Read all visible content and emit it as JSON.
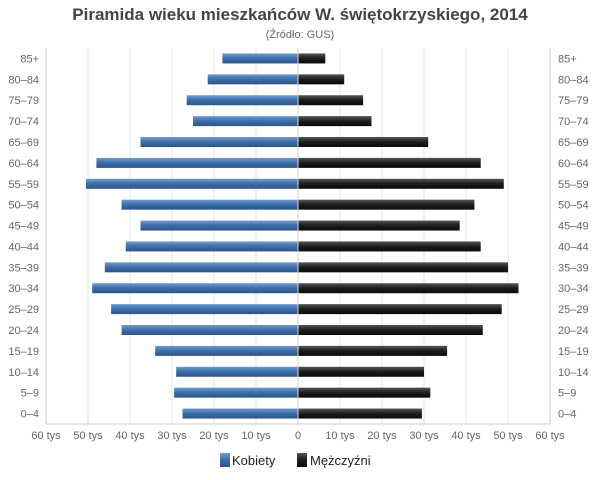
{
  "chart_data": {
    "type": "bar",
    "orientation": "horizontal",
    "layout": "population-pyramid",
    "title": "Piramida wieku mieszkańców W. świętokrzyskiego, 2014",
    "subtitle": "(Źródło: GUS)",
    "categories": [
      "0–4",
      "5–9",
      "10–14",
      "15–19",
      "20–24",
      "25–29",
      "30–34",
      "35–39",
      "40–44",
      "45–49",
      "50–54",
      "55–59",
      "60–64",
      "65–69",
      "70–74",
      "75–79",
      "80–84",
      "85+"
    ],
    "series": [
      {
        "name": "Kobiety",
        "color": "#3d6da8",
        "side": "left",
        "values": [
          27.5,
          29.5,
          29,
          34,
          42,
          44.5,
          49,
          46,
          41,
          37.5,
          42,
          50.5,
          48,
          37.5,
          25,
          26.5,
          21.5,
          18
        ]
      },
      {
        "name": "Mężczyźni",
        "color": "#1c1c1c",
        "side": "right",
        "values": [
          29.5,
          31.5,
          30,
          35.5,
          44,
          48.5,
          52.5,
          50,
          43.5,
          38.5,
          42,
          49,
          43.5,
          31,
          17.5,
          15.5,
          11,
          6.5
        ]
      }
    ],
    "xlim": [
      -60,
      60
    ],
    "x_ticks": [
      "60 tys",
      "50 tys",
      "40 tys",
      "30 tys",
      "20 tys",
      "10 tys",
      "0",
      "10 tys",
      "20 tys",
      "30 tys",
      "40 tys",
      "50 tys",
      "60 tys"
    ],
    "grid": true,
    "legend": "bottom-center"
  }
}
